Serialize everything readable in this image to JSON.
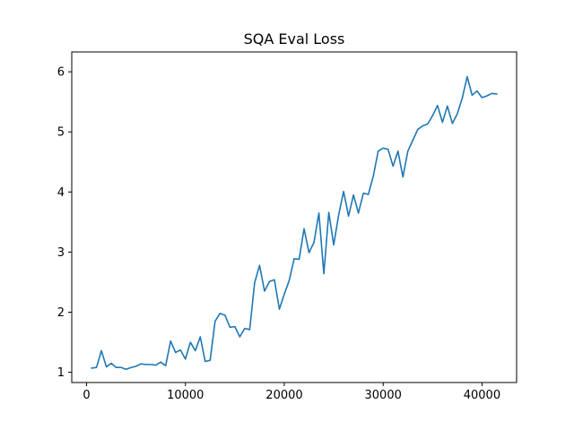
{
  "chart_data": {
    "type": "line",
    "title": "SQA Eval Loss",
    "xlabel": "",
    "ylabel": "",
    "xlim": [
      -1500,
      43500
    ],
    "ylim": [
      0.83,
      6.33
    ],
    "xticks": [
      0,
      10000,
      20000,
      30000,
      40000
    ],
    "xtick_labels": [
      "0",
      "10000",
      "20000",
      "30000",
      "40000"
    ],
    "yticks": [
      1,
      2,
      3,
      4,
      5,
      6
    ],
    "ytick_labels": [
      "1",
      "2",
      "3",
      "4",
      "5",
      "6"
    ],
    "grid": false,
    "legend": "none",
    "series": [
      {
        "color": "#1f77b4",
        "x": [
          500,
          1000,
          1500,
          2000,
          2500,
          3000,
          3500,
          4000,
          4500,
          5000,
          5500,
          6000,
          6500,
          7000,
          7500,
          8000,
          8500,
          9000,
          9500,
          10000,
          10500,
          11000,
          11500,
          12000,
          12500,
          13000,
          13500,
          14000,
          14500,
          15000,
          15500,
          16000,
          16500,
          17000,
          17500,
          18000,
          18500,
          19000,
          19500,
          20000,
          20500,
          21000,
          21500,
          22000,
          22500,
          23000,
          23500,
          24000,
          24500,
          25000,
          25500,
          26000,
          26500,
          27000,
          27500,
          28000,
          28500,
          29000,
          29500,
          30000,
          30500,
          31000,
          31500,
          32000,
          32500,
          33000,
          33500,
          34000,
          34500,
          35000,
          35500,
          36000,
          36500,
          37000,
          37500,
          38000,
          38500,
          39000,
          39500,
          40000,
          40500,
          41000,
          41500
        ],
        "y": [
          1.07,
          1.08,
          1.36,
          1.09,
          1.15,
          1.08,
          1.08,
          1.05,
          1.08,
          1.1,
          1.14,
          1.13,
          1.13,
          1.12,
          1.17,
          1.11,
          1.52,
          1.33,
          1.37,
          1.22,
          1.5,
          1.36,
          1.59,
          1.18,
          1.2,
          1.85,
          1.98,
          1.95,
          1.75,
          1.76,
          1.59,
          1.73,
          1.71,
          2.49,
          2.78,
          2.35,
          2.51,
          2.54,
          2.05,
          2.3,
          2.53,
          2.89,
          2.88,
          3.39,
          2.99,
          3.16,
          3.65,
          2.64,
          3.66,
          3.12,
          3.62,
          4.01,
          3.6,
          3.95,
          3.65,
          3.98,
          3.96,
          4.26,
          4.68,
          4.73,
          4.71,
          4.43,
          4.68,
          4.25,
          4.68,
          4.86,
          5.04,
          5.1,
          5.13,
          5.27,
          5.44,
          5.16,
          5.43,
          5.14,
          5.3,
          5.56,
          5.92,
          5.61,
          5.68,
          5.57,
          5.6,
          5.64,
          5.63
        ]
      }
    ]
  }
}
